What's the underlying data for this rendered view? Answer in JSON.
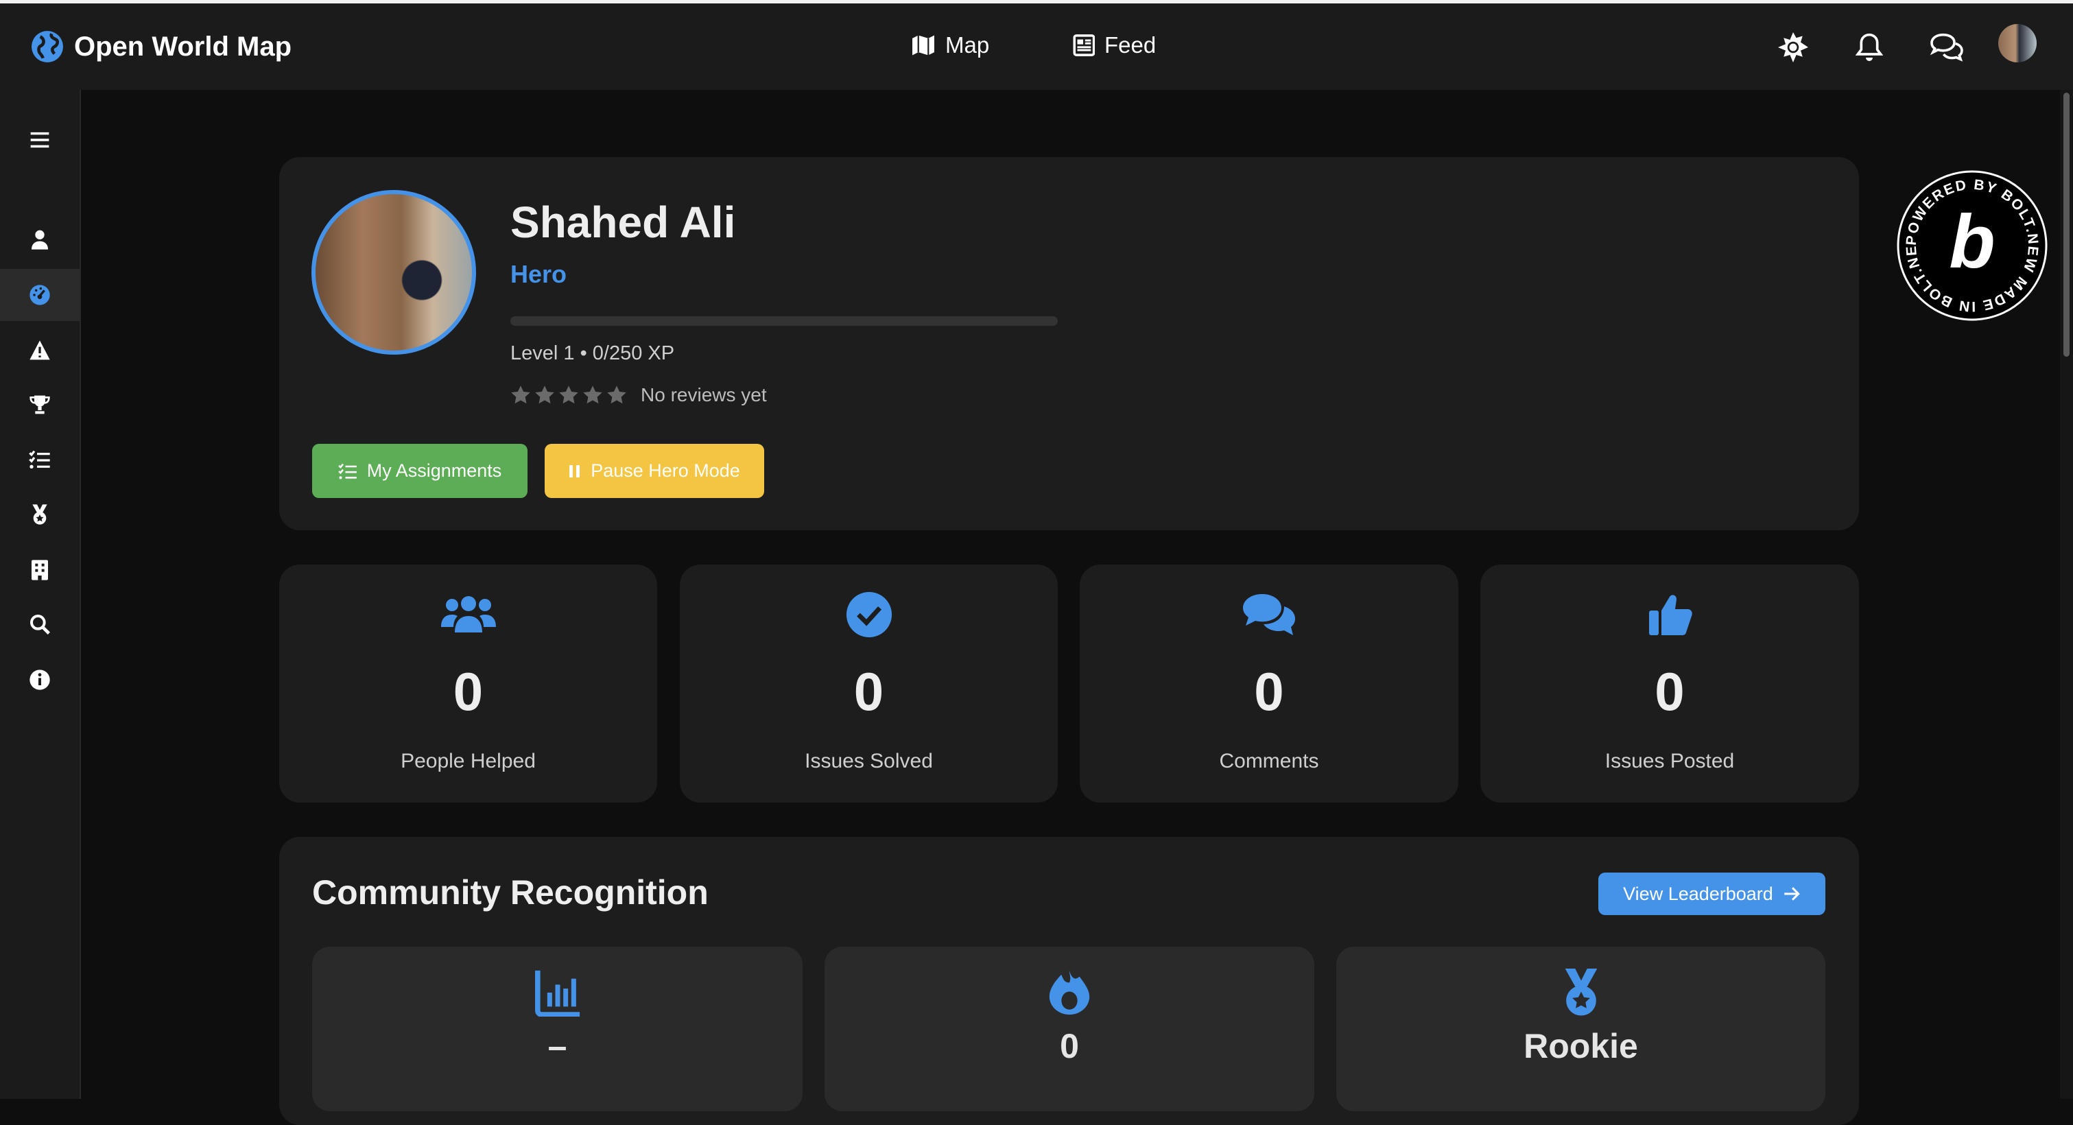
{
  "app": {
    "title": "Open World Map"
  },
  "nav": {
    "map_label": "Map",
    "feed_label": "Feed"
  },
  "header_icons": [
    "sun-icon",
    "bell-icon",
    "chat-icon",
    "avatar"
  ],
  "sidebar": {
    "items": [
      "menu",
      "profile",
      "dashboard",
      "issues",
      "leaderboard",
      "tasks",
      "badges",
      "organizations",
      "search",
      "info"
    ],
    "active": "dashboard"
  },
  "profile": {
    "name": "Shahed Ali",
    "role": "Hero",
    "xp_progress": 0,
    "level_text": "Level 1 • 0/250 XP",
    "rating_stars": 0,
    "reviews_text": "No reviews yet",
    "assignments_label": "My Assignments",
    "pause_label": "Pause Hero Mode"
  },
  "stats": [
    {
      "icon": "users-icon",
      "value": "0",
      "label": "People Helped"
    },
    {
      "icon": "check-circle-icon",
      "value": "0",
      "label": "Issues Solved"
    },
    {
      "icon": "comments-icon",
      "value": "0",
      "label": "Comments"
    },
    {
      "icon": "thumbs-up-icon",
      "value": "0",
      "label": "Issues Posted"
    }
  ],
  "community": {
    "title": "Community Recognition",
    "leaderboard_label": "View Leaderboard",
    "cards": [
      {
        "icon": "chart-bar-icon",
        "value": "–"
      },
      {
        "icon": "fire-icon",
        "value": "0"
      },
      {
        "icon": "medal-icon",
        "value": "Rookie"
      }
    ]
  },
  "badge": {
    "text": "POWERED BY BOLT.NEW MADE IN BOLT.NEW"
  },
  "colors": {
    "accent": "#4493e8",
    "success": "#5cad55",
    "warning": "#f4c542",
    "card": "#1d1d1d"
  }
}
